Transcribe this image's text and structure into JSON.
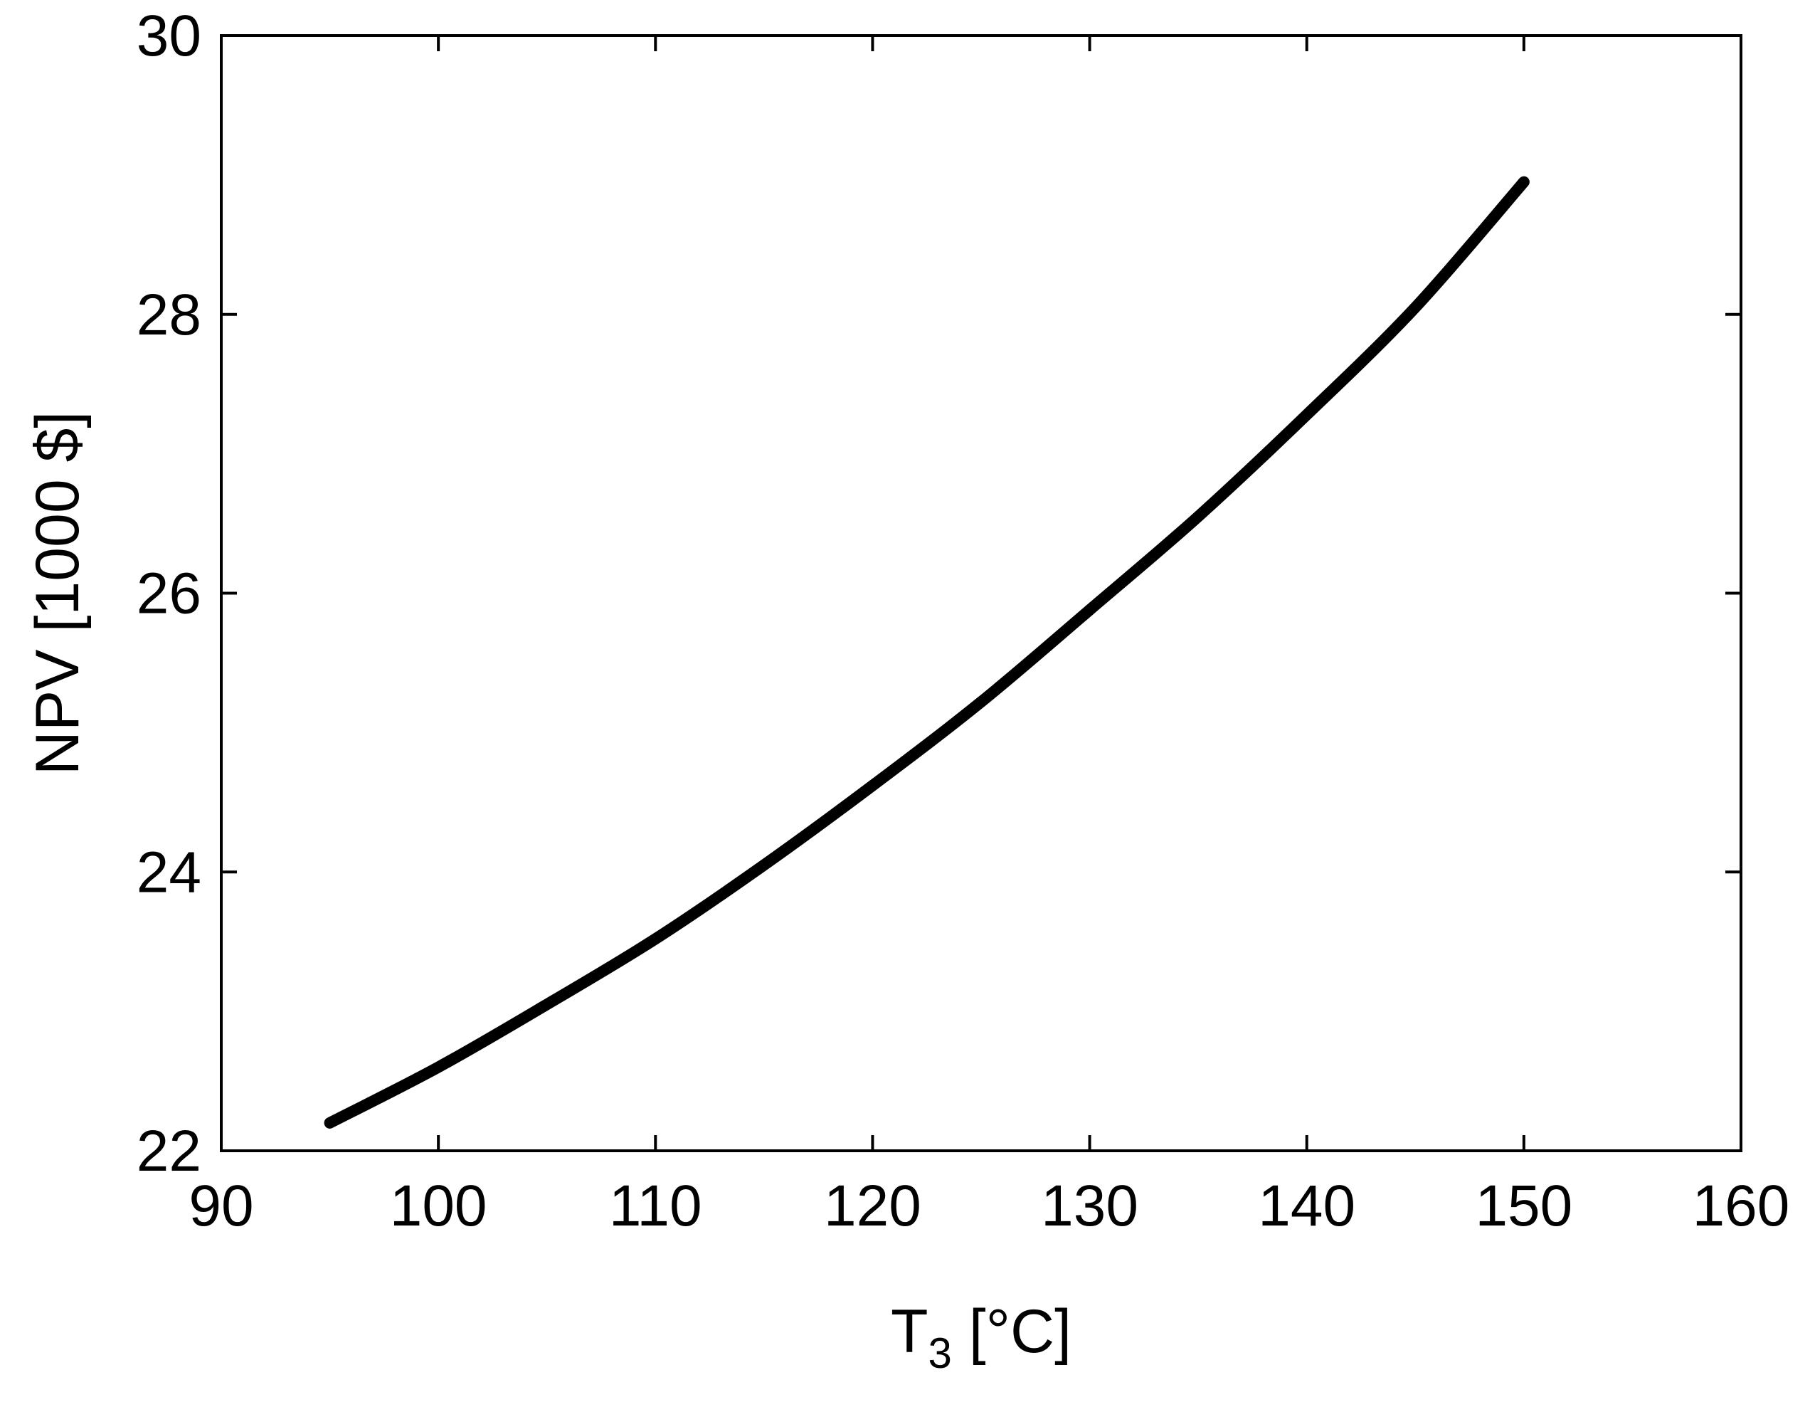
{
  "chart_data": {
    "type": "line",
    "title": "",
    "xlabel": {
      "main": "T",
      "subscript": "3",
      "suffix": " [°C]"
    },
    "ylabel": "NPV [1000 $]",
    "xlim": [
      90,
      160
    ],
    "ylim": [
      22,
      30
    ],
    "xticks": [
      90,
      100,
      110,
      120,
      130,
      140,
      150,
      160
    ],
    "yticks": [
      22,
      24,
      26,
      28,
      30
    ],
    "grid": false,
    "legend": "none",
    "line_color": "#000000",
    "series": [
      {
        "x": [
          95,
          100,
          105,
          110,
          115,
          120,
          125,
          130,
          135,
          140,
          145,
          150
        ],
        "values": [
          22.2,
          22.6,
          23.05,
          23.52,
          24.05,
          24.62,
          25.22,
          25.88,
          26.55,
          27.28,
          28.05,
          28.95
        ]
      }
    ]
  }
}
